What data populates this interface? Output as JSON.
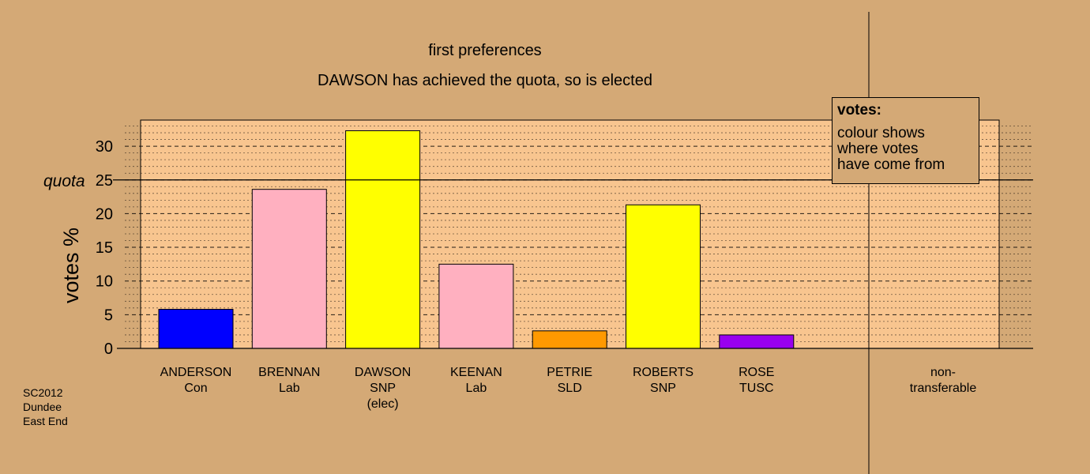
{
  "chart_data": {
    "type": "bar",
    "title": "first preferences",
    "subtitle": "DAWSON has achieved the quota, so is elected",
    "ylabel": "votes %",
    "ylim": [
      0,
      33.5
    ],
    "yticks": [
      0,
      5,
      10,
      15,
      20,
      25,
      30
    ],
    "quota": 25,
    "quota_label": "quota",
    "categories": [
      {
        "name": "ANDERSON",
        "party": "Con",
        "extra": ""
      },
      {
        "name": "BRENNAN",
        "party": "Lab",
        "extra": ""
      },
      {
        "name": "DAWSON",
        "party": "SNP",
        "extra": "(elec)"
      },
      {
        "name": "KEENAN",
        "party": "Lab",
        "extra": ""
      },
      {
        "name": "PETRIE",
        "party": "SLD",
        "extra": ""
      },
      {
        "name": "ROBERTS",
        "party": "SNP",
        "extra": ""
      },
      {
        "name": "ROSE",
        "party": "TUSC",
        "extra": ""
      }
    ],
    "values": [
      5.8,
      23.6,
      32.3,
      12.5,
      2.6,
      21.3,
      2.0
    ],
    "colors": [
      "#0000ff",
      "#ffb0c0",
      "#ffff00",
      "#ffb0c0",
      "#ff9900",
      "#ffff00",
      "#9900ee"
    ],
    "nontransferable": {
      "line1": "non-",
      "line2": "transferable",
      "value": 0
    },
    "grid": true
  },
  "legend": {
    "title": "votes:",
    "line1": "colour shows",
    "line2": "where votes",
    "line3": "have come from"
  },
  "source": {
    "line1": "SC2012",
    "line2": "Dundee",
    "line3": "East End"
  }
}
